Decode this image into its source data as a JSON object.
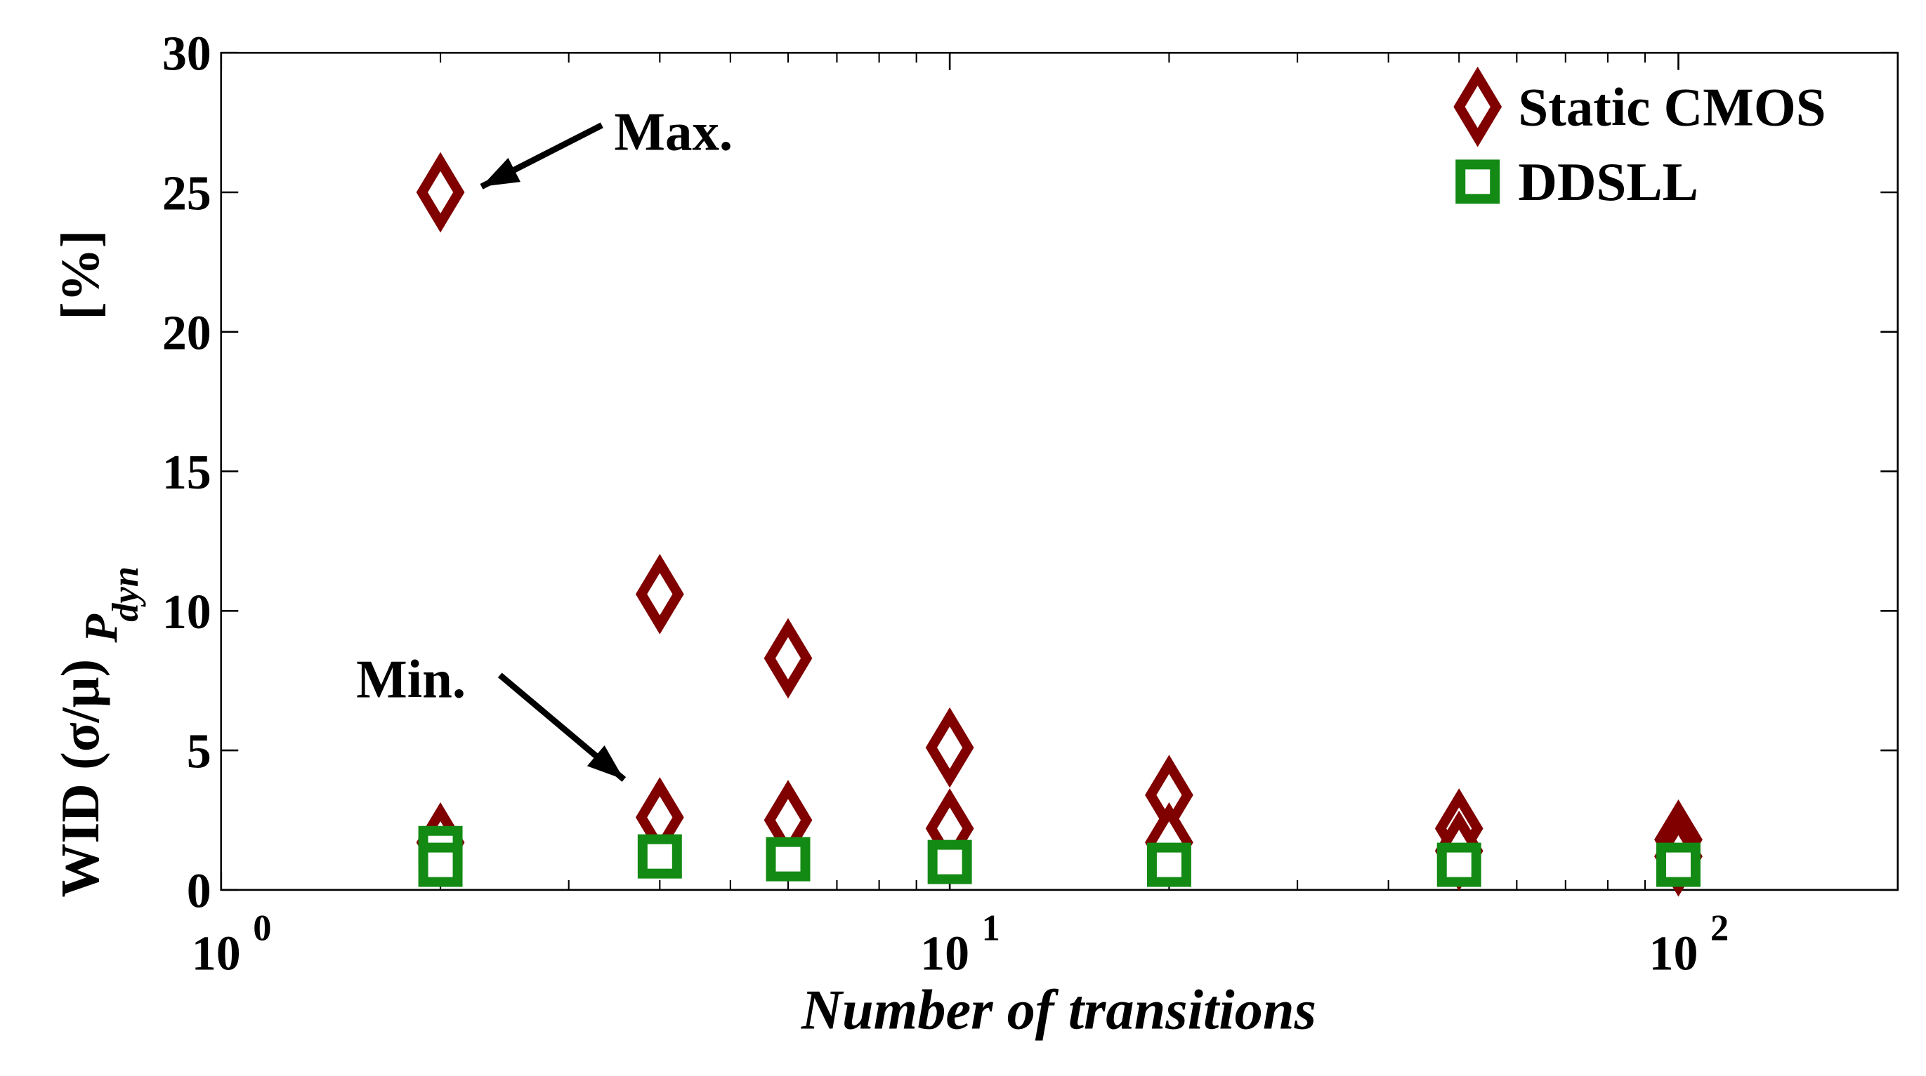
{
  "chart_data": {
    "type": "scatter",
    "xlabel": "Number of transitions",
    "ylabel": {
      "main": "WID (σ/μ)",
      "sub": "P",
      "subsub": "dyn",
      "unit": "[%]"
    },
    "xscale": "log",
    "xlim": [
      1,
      200
    ],
    "ylim": [
      0,
      30
    ],
    "xticks": [
      {
        "value": 1,
        "label": "10",
        "exponent": "0"
      },
      {
        "value": 10,
        "label": "10",
        "exponent": "1"
      },
      {
        "value": 100,
        "label": "10",
        "exponent": "2"
      }
    ],
    "xminorticks": [
      2,
      3,
      4,
      5,
      6,
      7,
      8,
      9,
      20,
      30,
      40,
      50,
      60,
      70,
      80,
      90
    ],
    "yticks": [
      0,
      5,
      10,
      15,
      20,
      25,
      30
    ],
    "grid": false,
    "legend": "upper-right",
    "annotations": [
      {
        "text": "Max."
      },
      {
        "text": "Min."
      }
    ],
    "series": [
      {
        "name": "Static CMOS",
        "color": "#800000",
        "marker": "diamond",
        "x": [
          2,
          2,
          4,
          4,
          6,
          6,
          10,
          10,
          20,
          20,
          50,
          50,
          100,
          100
        ],
        "values": [
          25,
          1.7,
          10.6,
          2.6,
          8.3,
          2.5,
          5.1,
          2.2,
          3.4,
          1.7,
          2.2,
          1.4,
          1.8,
          1.2
        ]
      },
      {
        "name": "DDSLL",
        "color": "#138a13",
        "marker": "square",
        "x": [
          2,
          2,
          4,
          6,
          10,
          20,
          50,
          100
        ],
        "values": [
          1.5,
          0.9,
          1.2,
          1.1,
          1.0,
          0.9,
          0.9,
          0.9
        ]
      }
    ]
  }
}
